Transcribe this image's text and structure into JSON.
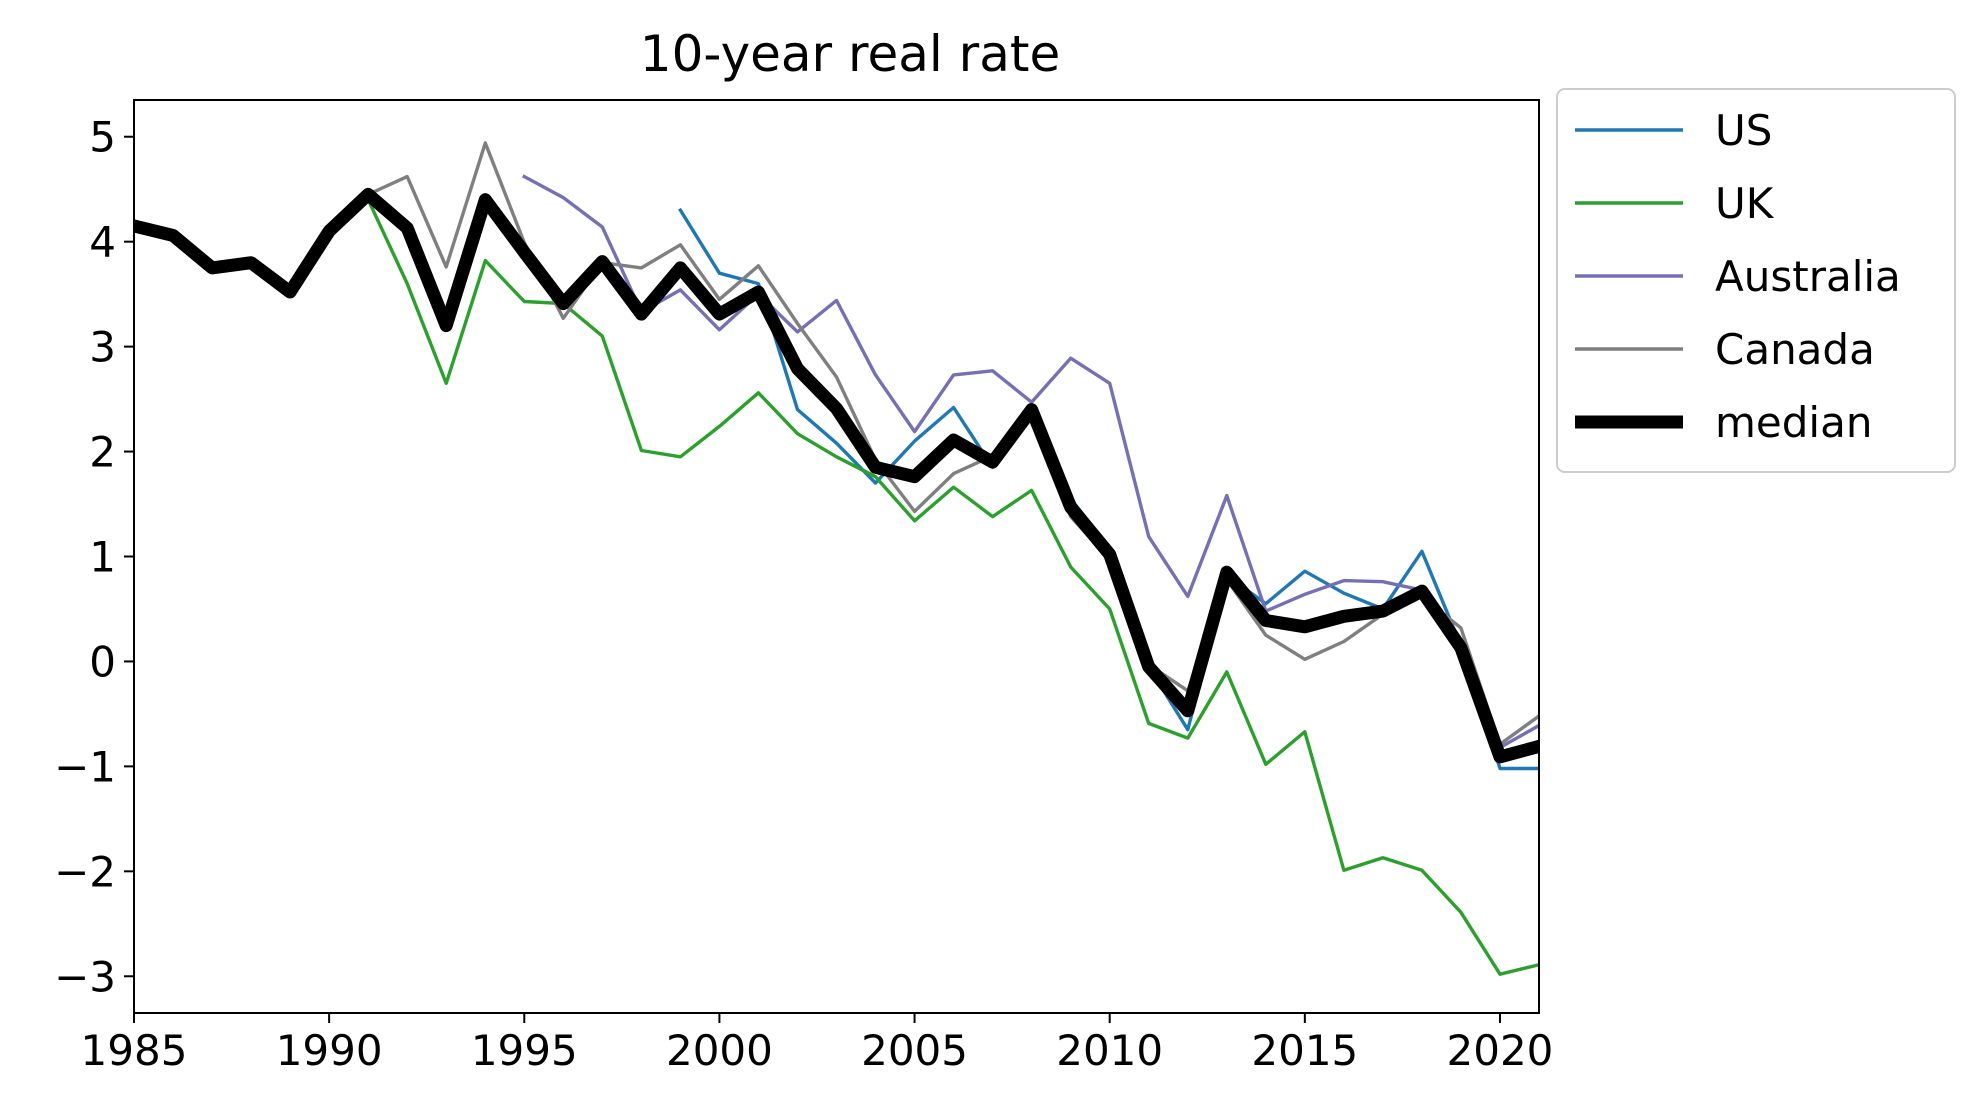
{
  "chart_data": {
    "type": "line",
    "title": "10-year real rate",
    "xlabel": "",
    "ylabel": "",
    "xlim": [
      1985,
      2021
    ],
    "ylim": [
      -3.35,
      5.35
    ],
    "xticks": [
      1985,
      1990,
      1995,
      2000,
      2005,
      2010,
      2015,
      2020
    ],
    "yticks": [
      -3,
      -2,
      -1,
      0,
      1,
      2,
      3,
      4,
      5
    ],
    "ytick_labels": [
      "−3",
      "−2",
      "−1",
      "0",
      "1",
      "2",
      "3",
      "4",
      "5"
    ],
    "grid": false,
    "legend_position": "outside-right-top",
    "series": [
      {
        "name": "US",
        "color": "#1f77b4",
        "width": "thin",
        "x": [
          1999,
          2000,
          2001,
          2002,
          2003,
          2004,
          2005,
          2006,
          2007,
          2008,
          2009,
          2010,
          2011,
          2012,
          2013,
          2014,
          2015,
          2016,
          2017,
          2018,
          2019,
          2020,
          2021
        ],
        "y": [
          4.3,
          3.7,
          3.6,
          2.4,
          2.08,
          1.7,
          2.1,
          2.42,
          1.85,
          2.4,
          1.55,
          1.08,
          -0.05,
          -0.65,
          0.82,
          0.55,
          0.86,
          0.65,
          0.5,
          1.05,
          0.15,
          -1.02,
          -1.02
        ]
      },
      {
        "name": "UK",
        "color": "#2ca02c",
        "width": "thin",
        "x": [
          1991,
          1992,
          1993,
          1994,
          1995,
          1996,
          1997,
          1998,
          1999,
          2000,
          2001,
          2002,
          2003,
          2004,
          2005,
          2006,
          2007,
          2008,
          2009,
          2010,
          2011,
          2012,
          2013,
          2014,
          2015,
          2016,
          2017,
          2018,
          2019,
          2020,
          2021
        ],
        "y": [
          4.4,
          3.6,
          2.65,
          3.82,
          3.43,
          3.41,
          3.1,
          2.01,
          1.95,
          2.24,
          2.56,
          2.17,
          1.95,
          1.76,
          1.34,
          1.66,
          1.38,
          1.63,
          0.9,
          0.5,
          -0.59,
          -0.73,
          -0.1,
          -0.98,
          -0.67,
          -1.99,
          -1.87,
          -1.99,
          -2.39,
          -2.98,
          -2.89
        ]
      },
      {
        "name": "Australia",
        "color": "#7570b3",
        "width": "thin",
        "x": [
          1995,
          1996,
          1997,
          1998,
          1999,
          2000,
          2001,
          2002,
          2003,
          2004,
          2005,
          2006,
          2007,
          2008,
          2009,
          2010,
          2011,
          2012,
          2013,
          2014,
          2015,
          2016,
          2017,
          2018,
          2019,
          2020,
          2021
        ],
        "y": [
          4.62,
          4.42,
          4.14,
          3.33,
          3.54,
          3.16,
          3.5,
          3.14,
          3.44,
          2.73,
          2.19,
          2.73,
          2.77,
          2.47,
          2.89,
          2.65,
          1.19,
          0.62,
          1.58,
          0.48,
          0.64,
          0.77,
          0.76,
          0.68,
          0.1,
          -0.82,
          -0.61
        ]
      },
      {
        "name": "Canada",
        "color": "#7f7f7f",
        "width": "thin",
        "x": [
          1991,
          1992,
          1993,
          1994,
          1995,
          1996,
          1997,
          1998,
          1999,
          2000,
          2001,
          2002,
          2003,
          2004,
          2005,
          2006,
          2007,
          2008,
          2009,
          2010,
          2011,
          2012,
          2013,
          2014,
          2015,
          2016,
          2017,
          2018,
          2019,
          2020,
          2021
        ],
        "y": [
          4.45,
          4.62,
          3.76,
          4.94,
          3.99,
          3.27,
          3.8,
          3.75,
          3.97,
          3.45,
          3.77,
          3.22,
          2.71,
          1.92,
          1.43,
          1.79,
          1.96,
          2.35,
          1.38,
          0.97,
          -0.03,
          -0.28,
          0.78,
          0.25,
          0.02,
          0.19,
          0.45,
          0.62,
          0.32,
          -0.79,
          -0.52
        ]
      },
      {
        "name": "median",
        "color": "#000000",
        "width": "thick",
        "x": [
          1985,
          1986,
          1987,
          1988,
          1989,
          1990,
          1991,
          1992,
          1993,
          1994,
          1995,
          1996,
          1997,
          1998,
          1999,
          2000,
          2001,
          2002,
          2003,
          2004,
          2005,
          2006,
          2007,
          2008,
          2009,
          2010,
          2011,
          2012,
          2013,
          2014,
          2015,
          2016,
          2017,
          2018,
          2019,
          2020,
          2021
        ],
        "y": [
          4.15,
          4.06,
          3.75,
          3.8,
          3.52,
          4.1,
          4.45,
          4.13,
          3.2,
          4.4,
          3.9,
          3.41,
          3.81,
          3.31,
          3.75,
          3.31,
          3.52,
          2.79,
          2.41,
          1.85,
          1.76,
          2.11,
          1.9,
          2.4,
          1.47,
          1.02,
          -0.05,
          -0.47,
          0.85,
          0.39,
          0.33,
          0.43,
          0.48,
          0.67,
          0.13,
          -0.91,
          -0.81
        ]
      }
    ]
  }
}
